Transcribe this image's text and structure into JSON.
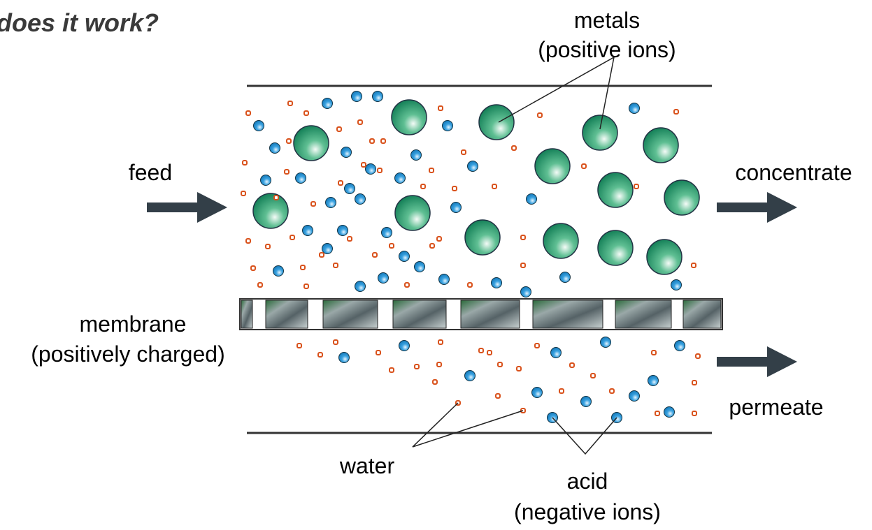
{
  "title": "does it work?",
  "metals": [
    "metals",
    "(positive ions)"
  ],
  "feed": "feed",
  "concentrate": "concentrate",
  "membrane": [
    "membrane",
    "(positively charged)"
  ],
  "permeate": "permeate",
  "water": "water",
  "acid": [
    "acid",
    "(negative ions)"
  ]
}
